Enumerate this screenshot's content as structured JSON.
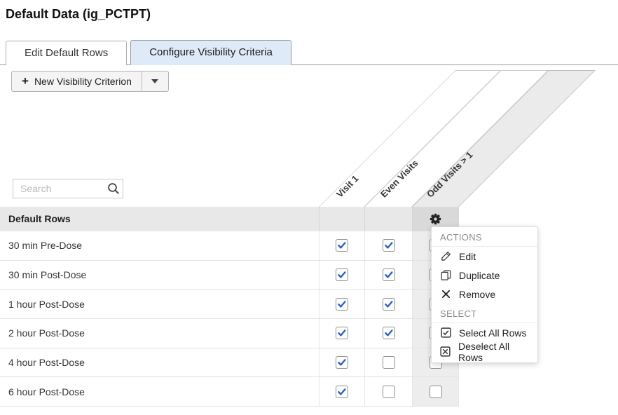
{
  "page_title": "Default Data (ig_PCTPT)",
  "tabs": [
    {
      "label": "Edit Default Rows",
      "active": false
    },
    {
      "label": "Configure Visibility Criteria",
      "active": true
    }
  ],
  "toolbar": {
    "new_criterion_label": "New Visibility Criterion",
    "plus_icon": "+"
  },
  "search": {
    "placeholder": "Search"
  },
  "columns": [
    {
      "label": "Visit 1",
      "selected": false
    },
    {
      "label": "Even Visits",
      "selected": false
    },
    {
      "label": "Odd Visits > 1",
      "selected": true
    }
  ],
  "table": {
    "header": "Default Rows",
    "rows": [
      {
        "label": "30 min Pre-Dose",
        "checks": [
          true,
          true,
          false
        ]
      },
      {
        "label": "30 min Post-Dose",
        "checks": [
          true,
          true,
          false
        ]
      },
      {
        "label": "1 hour Post-Dose",
        "checks": [
          true,
          true,
          false
        ]
      },
      {
        "label": "2 hour Post-Dose",
        "checks": [
          true,
          true,
          false
        ]
      },
      {
        "label": "4 hour Post-Dose",
        "checks": [
          true,
          false,
          false
        ]
      },
      {
        "label": "6 hour Post-Dose",
        "checks": [
          true,
          false,
          false
        ]
      }
    ]
  },
  "context_menu": {
    "groups": [
      {
        "label": "ACTIONS",
        "items": [
          {
            "icon": "pencil-icon",
            "label": "Edit"
          },
          {
            "icon": "duplicate-icon",
            "label": "Duplicate"
          },
          {
            "icon": "x-icon",
            "label": "Remove"
          }
        ]
      },
      {
        "label": "SELECT",
        "items": [
          {
            "icon": "checkbox-checked-icon",
            "label": "Select All Rows"
          },
          {
            "icon": "checkbox-crossed-icon",
            "label": "Deselect All Rows"
          }
        ]
      }
    ]
  },
  "colors": {
    "check_blue": "#2a61c9",
    "active_tab_bg": "#dfeaf8",
    "header_row_bg": "#e8e8e8",
    "selected_col_bg": "#d9d9d9",
    "shaded_col_bg": "#ededed"
  }
}
